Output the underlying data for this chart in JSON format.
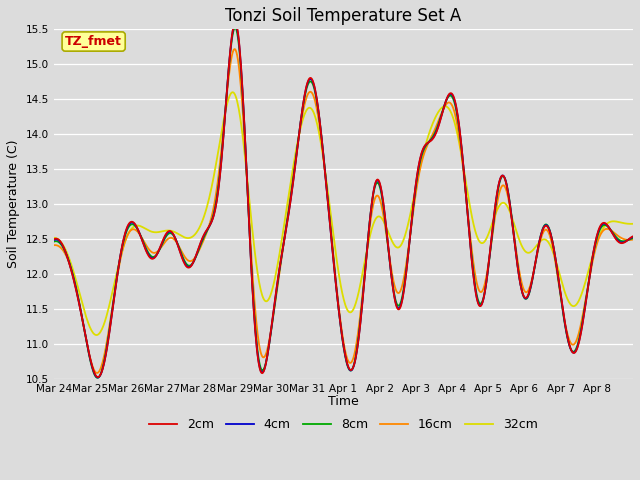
{
  "title": "Tonzi Soil Temperature Set A",
  "ylabel": "Soil Temperature (C)",
  "xlabel": "Time",
  "annotation": "TZ_fmet",
  "annotation_color": "#cc0000",
  "annotation_bg": "#ffff99",
  "annotation_border": "#aaaa00",
  "ylim": [
    10.5,
    15.5
  ],
  "yticks": [
    10.5,
    11.0,
    11.5,
    12.0,
    12.5,
    13.0,
    13.5,
    14.0,
    14.5,
    15.0,
    15.5
  ],
  "xtick_labels": [
    "Mar 24",
    "Mar 25",
    "Mar 26",
    "Mar 27",
    "Mar 28",
    "Mar 29",
    "Mar 30",
    "Mar 31",
    "Apr 1",
    "Apr 2",
    "Apr 3",
    "Apr 4",
    "Apr 5",
    "Apr 6",
    "Apr 7",
    "Apr 8"
  ],
  "line_colors": [
    "#dd0000",
    "#0000cc",
    "#00aa00",
    "#ff8800",
    "#dddd00"
  ],
  "line_labels": [
    "2cm",
    "4cm",
    "8cm",
    "16cm",
    "32cm"
  ],
  "background_color": "#dcdcdc",
  "grid_color": "#ffffff",
  "title_fontsize": 12,
  "tick_fontsize": 7.5,
  "legend_fontsize": 9,
  "figsize": [
    6.4,
    4.8
  ],
  "dpi": 100
}
